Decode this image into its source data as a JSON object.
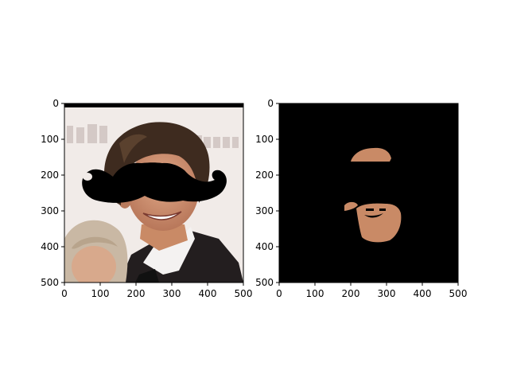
{
  "chart_data": [
    {
      "type": "image",
      "title": "",
      "xlabel": "",
      "ylabel": "",
      "xlim": [
        0,
        500
      ],
      "ylim": [
        500,
        0
      ],
      "y_axis_inverted": true,
      "xticks": [
        0,
        100,
        200,
        300,
        400,
        500
      ],
      "yticks": [
        0,
        100,
        200,
        300,
        400,
        500
      ],
      "grid": false,
      "content": "photo of smiling man in dark suit with black mustache overlay",
      "overlay": "black mustache",
      "colors": {
        "overlay": "#000000",
        "skin": "#c98a66",
        "hair": "#3c2a1e",
        "background": "#efe9e6"
      }
    },
    {
      "type": "image",
      "title": "",
      "xlabel": "",
      "ylabel": "",
      "xlim": [
        0,
        500
      ],
      "ylim": [
        500,
        0
      ],
      "y_axis_inverted": true,
      "xticks": [
        0,
        100,
        200,
        300,
        400,
        500
      ],
      "yticks": [
        0,
        100,
        200,
        300,
        400,
        500
      ],
      "grid": false,
      "content": "face region mask: skin pixels on black background",
      "colors": {
        "background": "#000000",
        "skin": "#c98a66"
      }
    }
  ]
}
